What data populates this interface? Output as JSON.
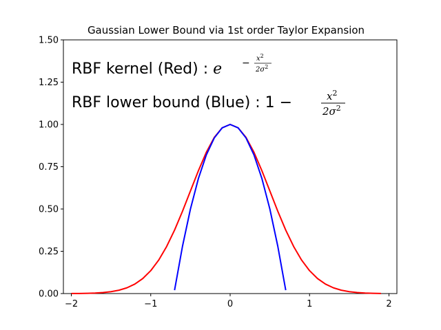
{
  "chart_data": {
    "type": "line",
    "title": "Gaussian Lower Bound via 1st order Taylor Expansion",
    "xlabel": "",
    "ylabel": "",
    "xlim": [
      -2.1,
      2.1
    ],
    "ylim": [
      0,
      1.5
    ],
    "xticks": [
      "−2",
      "−1",
      "0",
      "1",
      "2"
    ],
    "xtick_values": [
      -2,
      -1,
      0,
      1,
      2
    ],
    "yticks": [
      "0.00",
      "0.25",
      "0.50",
      "0.75",
      "1.00",
      "1.25",
      "1.50"
    ],
    "ytick_values": [
      0,
      0.25,
      0.5,
      0.75,
      1.0,
      1.25,
      1.5
    ],
    "grid": false,
    "series": [
      {
        "color": "#ff0000",
        "x": [
          -2.0,
          -1.9,
          -1.8,
          -1.7,
          -1.6,
          -1.5,
          -1.4,
          -1.3,
          -1.2,
          -1.1,
          -1.0,
          -0.9,
          -0.8,
          -0.7,
          -0.6,
          -0.5,
          -0.4,
          -0.3,
          -0.2,
          -0.1,
          0.0,
          0.1,
          0.2,
          0.3,
          0.4,
          0.5,
          0.6,
          0.7,
          0.8,
          0.9,
          1.0,
          1.1,
          1.2,
          1.3,
          1.4,
          1.5,
          1.6,
          1.7,
          1.8,
          1.9
        ],
        "y": [
          0.0003,
          0.0007,
          0.0015,
          0.0031,
          0.006,
          0.0111,
          0.0198,
          0.034,
          0.0561,
          0.0889,
          0.1353,
          0.1979,
          0.278,
          0.3753,
          0.4868,
          0.6065,
          0.7261,
          0.8353,
          0.9231,
          0.9802,
          1.0,
          0.9802,
          0.9231,
          0.8353,
          0.7261,
          0.6065,
          0.4868,
          0.3753,
          0.278,
          0.1979,
          0.1353,
          0.0889,
          0.0561,
          0.034,
          0.0198,
          0.0111,
          0.006,
          0.0031,
          0.0015,
          0.0007
        ]
      },
      {
        "color": "#0000ff",
        "x": [
          -0.7,
          -0.6,
          -0.5,
          -0.4,
          -0.3,
          -0.2,
          -0.1,
          0.0,
          0.1,
          0.2,
          0.3,
          0.4,
          0.5,
          0.6,
          0.7
        ],
        "y": [
          0.02,
          0.28,
          0.5,
          0.68,
          0.82,
          0.92,
          0.98,
          1.0,
          0.98,
          0.92,
          0.82,
          0.68,
          0.5,
          0.28,
          0.02
        ]
      }
    ],
    "annotations": {
      "line1_text": "RBF kernel (Red) : ",
      "line1_base": "e",
      "line1_exp_num": "x",
      "line1_exp_den": "2σ",
      "line2_text": "RBF lower bound (Blue) : 1 −",
      "line2_num": "x",
      "line2_den": "2σ"
    }
  }
}
